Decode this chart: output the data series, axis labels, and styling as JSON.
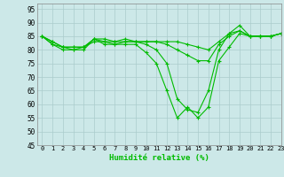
{
  "title": "",
  "xlabel": "Humidité relative (%)",
  "ylabel": "",
  "xlim": [
    -0.5,
    23
  ],
  "ylim": [
    45,
    97
  ],
  "yticks": [
    45,
    50,
    55,
    60,
    65,
    70,
    75,
    80,
    85,
    90,
    95
  ],
  "xticks": [
    0,
    1,
    2,
    3,
    4,
    5,
    6,
    7,
    8,
    9,
    10,
    11,
    12,
    13,
    14,
    15,
    16,
    17,
    18,
    19,
    20,
    21,
    22,
    23
  ],
  "background_color": "#cce8e8",
  "grid_color": "#aacccc",
  "line_color": "#00bb00",
  "series": [
    [
      85,
      82,
      80,
      80,
      80,
      84,
      82,
      82,
      82,
      82,
      79,
      75,
      65,
      55,
      59,
      55,
      59,
      76,
      81,
      86,
      85,
      85,
      85,
      86
    ],
    [
      85,
      82,
      81,
      81,
      81,
      83,
      83,
      82,
      83,
      83,
      82,
      80,
      75,
      62,
      58,
      57,
      65,
      80,
      86,
      89,
      85,
      85,
      85,
      86
    ],
    [
      85,
      83,
      81,
      81,
      81,
      84,
      84,
      83,
      84,
      83,
      83,
      83,
      82,
      80,
      78,
      76,
      76,
      82,
      85,
      87,
      85,
      85,
      85,
      86
    ],
    [
      85,
      83,
      81,
      80,
      81,
      84,
      83,
      83,
      83,
      83,
      83,
      83,
      83,
      83,
      82,
      81,
      80,
      83,
      86,
      87,
      85,
      85,
      85,
      86
    ]
  ]
}
